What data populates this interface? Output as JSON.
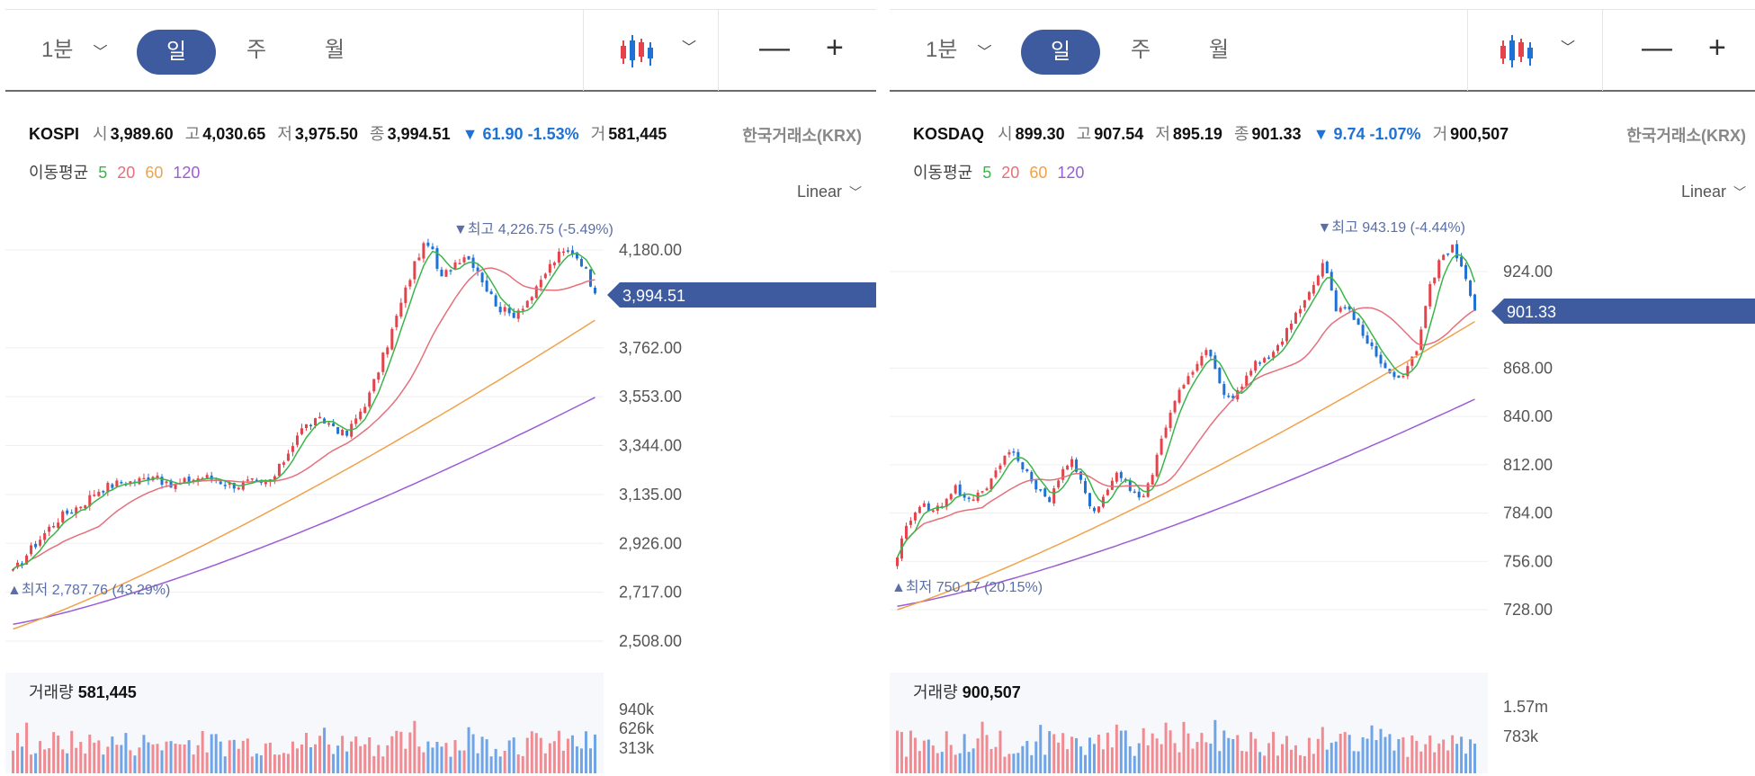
{
  "toolbar": {
    "interval_label": "1분",
    "tab_day": "일",
    "tab_week": "주",
    "tab_month": "월",
    "chart_type_icon": "candlestick-icon",
    "zoom_out": "—",
    "zoom_in": "+"
  },
  "colors": {
    "up": "#e5434c",
    "down": "#1e72d6",
    "ma5": "#3ab54a",
    "ma20": "#e5707a",
    "ma60": "#f0a24b",
    "ma120": "#9b5cd6",
    "accent": "#3f5b9f",
    "price_tag": "#3f5b9f"
  },
  "panels": [
    {
      "index_name": "KOSPI",
      "open_label": "시",
      "open": "3,989.60",
      "high_label": "고",
      "high": "4,030.65",
      "low_label": "저",
      "low": "3,975.50",
      "close_label": "종",
      "close": "3,994.51",
      "change_arrow": "▼",
      "change": "61.90",
      "change_pct": "-1.53%",
      "volume_label": "거",
      "volume": "581,445",
      "exchange": "한국거래소(KRX)",
      "ma_label": "이동평균",
      "ma_periods": [
        "5",
        "20",
        "60",
        "120"
      ],
      "scale_mode": "Linear",
      "price_tag": "3,994.51",
      "max_marker": "최고 4,226.75 (-5.49%)",
      "min_marker": "최저 2,787.76 (43.29%)",
      "vol_title": "거래량",
      "vol_value": "581,445",
      "y_ticks": [
        "4,180.00",
        "3,762.00",
        "3,553.00",
        "3,344.00",
        "3,135.00",
        "2,926.00",
        "2,717.00",
        "2,508.00"
      ],
      "vol_ticks": [
        "940k",
        "626k",
        "313k"
      ]
    },
    {
      "index_name": "KOSDAQ",
      "open_label": "시",
      "open": "899.30",
      "high_label": "고",
      "high": "907.54",
      "low_label": "저",
      "low": "895.19",
      "close_label": "종",
      "close": "901.33",
      "change_arrow": "▼",
      "change": "9.74",
      "change_pct": "-1.07%",
      "volume_label": "거",
      "volume": "900,507",
      "exchange": "한국거래소(KRX)",
      "ma_label": "이동평균",
      "ma_periods": [
        "5",
        "20",
        "60",
        "120"
      ],
      "scale_mode": "Linear",
      "price_tag": "901.33",
      "max_marker": "최고 943.19 (-4.44%)",
      "min_marker": "최저 750.17 (20.15%)",
      "vol_title": "거래량",
      "vol_value": "900,507",
      "y_ticks": [
        "924.00",
        "868.00",
        "840.00",
        "812.00",
        "784.00",
        "756.00",
        "728.00"
      ],
      "vol_ticks": [
        "1.57m",
        "783k"
      ]
    }
  ],
  "chart_data": [
    {
      "type": "candlestick",
      "title": "KOSPI",
      "scale": "linear",
      "ylim": [
        2508,
        4180
      ],
      "y_ticks": [
        4180,
        3762,
        3553,
        3344,
        3135,
        2926,
        2717,
        2508
      ],
      "last_close": 3994.51,
      "high_marker": 4226.75,
      "low_marker": 2787.76,
      "volume_axis_ticks": [
        940000,
        626000,
        313000
      ],
      "last_volume": 581445,
      "close_path": [
        2800,
        2870,
        2930,
        2990,
        3040,
        3070,
        3100,
        3150,
        3170,
        3185,
        3190,
        3200,
        3230,
        3165,
        3180,
        3200,
        3210,
        3200,
        3180,
        3175,
        3190,
        3170,
        3210,
        3300,
        3400,
        3440,
        3450,
        3430,
        3380,
        3470,
        3560,
        3700,
        3850,
        4000,
        4150,
        4220,
        4050,
        4120,
        4160,
        4110,
        4000,
        3930,
        3900,
        3950,
        4000,
        4100,
        4160,
        4180,
        4120,
        3994.51
      ],
      "ma_series": {
        "ma120_start": 2580,
        "ma120_end": 3550,
        "ma60_start": 2560,
        "ma60_end": 3880
      }
    },
    {
      "type": "candlestick",
      "title": "KOSDAQ",
      "scale": "linear",
      "ylim": [
        728,
        924
      ],
      "y_ticks": [
        924,
        868,
        840,
        812,
        784,
        756,
        728
      ],
      "last_close": 901.33,
      "high_marker": 943.19,
      "low_marker": 750.17,
      "volume_axis_ticks": [
        1570000,
        783000
      ],
      "last_volume": 900507,
      "close_path": [
        760,
        780,
        790,
        785,
        790,
        800,
        790,
        795,
        802,
        815,
        820,
        808,
        800,
        790,
        805,
        815,
        800,
        785,
        795,
        808,
        800,
        792,
        805,
        830,
        850,
        860,
        870,
        880,
        855,
        850,
        860,
        870,
        875,
        880,
        895,
        905,
        915,
        930,
        900,
        905,
        890,
        880,
        870,
        862,
        865,
        880,
        915,
        930,
        940,
        925,
        901.33
      ],
      "ma_series": {
        "ma120_start": 730,
        "ma120_end": 850,
        "ma60_start": 728,
        "ma60_end": 895
      }
    }
  ]
}
